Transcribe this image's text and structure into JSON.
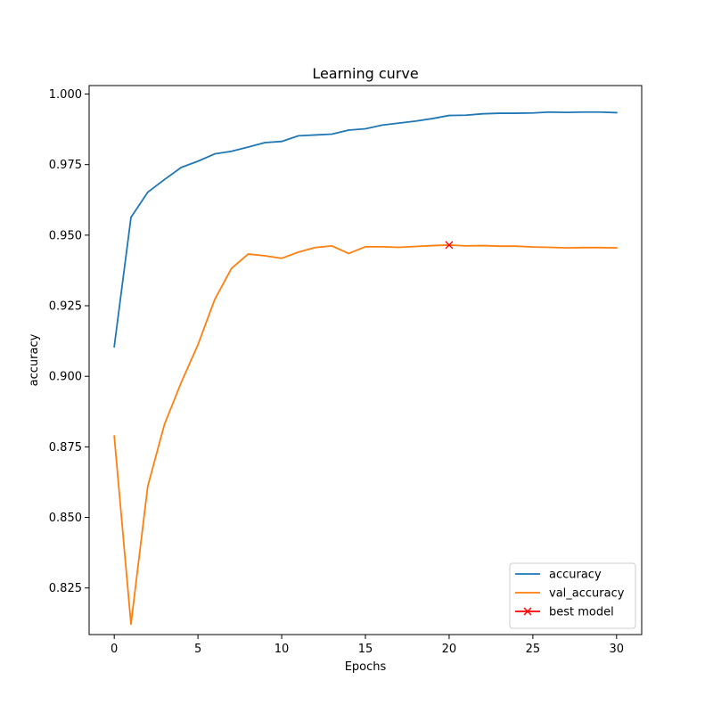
{
  "chart_data": {
    "type": "line",
    "title": "Learning curve",
    "xlabel": "Epochs",
    "ylabel": "accuracy",
    "xlim": [
      -1.5,
      31.5
    ],
    "ylim": [
      0.8085,
      1.003
    ],
    "xticks": [
      0,
      5,
      10,
      15,
      20,
      25,
      30
    ],
    "yticks": [
      0.825,
      0.85,
      0.875,
      0.9,
      0.925,
      0.95,
      0.975,
      1.0
    ],
    "ytick_labels": [
      "0.825",
      "0.850",
      "0.875",
      "0.900",
      "0.925",
      "0.950",
      "0.975",
      "1.000"
    ],
    "grid": false,
    "legend_position": "lower-right",
    "series": [
      {
        "name": "accuracy",
        "color": "#1f77b4",
        "x": [
          0,
          1,
          2,
          3,
          4,
          5,
          6,
          7,
          8,
          9,
          10,
          11,
          12,
          13,
          14,
          15,
          16,
          17,
          18,
          19,
          20,
          21,
          22,
          23,
          24,
          25,
          26,
          27,
          28,
          29,
          30
        ],
        "y": [
          0.9105,
          0.9563,
          0.9652,
          0.9697,
          0.974,
          0.9762,
          0.9788,
          0.9797,
          0.9812,
          0.9828,
          0.9832,
          0.9852,
          0.9855,
          0.9858,
          0.9872,
          0.9877,
          0.989,
          0.9897,
          0.9904,
          0.9913,
          0.9924,
          0.9925,
          0.993,
          0.9932,
          0.9932,
          0.9933,
          0.9936,
          0.9935,
          0.9936,
          0.9936,
          0.9934
        ]
      },
      {
        "name": "val_accuracy",
        "color": "#ff7f0e",
        "x": [
          0,
          1,
          2,
          3,
          4,
          5,
          6,
          7,
          8,
          9,
          10,
          11,
          12,
          13,
          14,
          15,
          16,
          17,
          18,
          19,
          20,
          21,
          22,
          23,
          24,
          25,
          26,
          27,
          28,
          29,
          30
        ],
        "y": [
          0.8788,
          0.8122,
          0.861,
          0.883,
          0.8978,
          0.9112,
          0.9272,
          0.9382,
          0.9433,
          0.9427,
          0.9418,
          0.944,
          0.9456,
          0.9462,
          0.9435,
          0.9459,
          0.9459,
          0.9457,
          0.946,
          0.9463,
          0.9465,
          0.9462,
          0.9463,
          0.9461,
          0.9461,
          0.9458,
          0.9457,
          0.9455,
          0.9456,
          0.9456,
          0.9455
        ]
      }
    ],
    "markers": [
      {
        "name": "best model",
        "color": "#ff0000",
        "symbol": "x",
        "x": 20,
        "y": 0.9465
      }
    ]
  }
}
